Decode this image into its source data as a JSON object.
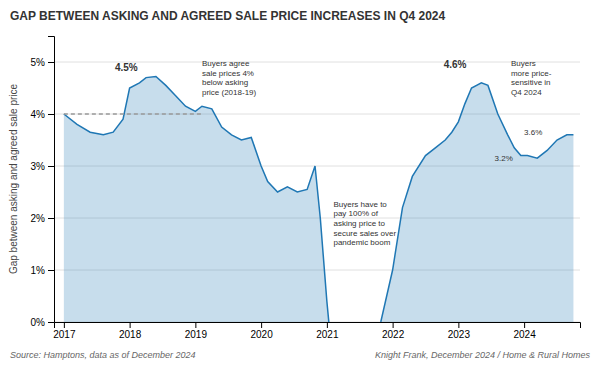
{
  "chart_data": {
    "type": "area",
    "title": "GAP BETWEEN ASKING AND AGREED SALE PRICE INCREASES IN Q4 2024",
    "ylabel": "Gap between asking and agreed sale price",
    "notes": [
      "Source: Hamptons, data as of December 2024",
      "Knight Frank, December 2024 / Home & Rural Homes"
    ],
    "series": [
      {
        "type": "area",
        "x": [
          2017.0,
          2017.2,
          2017.4,
          2017.6,
          2017.75,
          2017.9,
          2018.0,
          2018.15,
          2018.25,
          2018.4,
          2018.55,
          2018.7,
          2018.85,
          2019.0,
          2019.1,
          2019.25,
          2019.4,
          2019.55,
          2019.7,
          2019.85,
          2020.0,
          2020.1,
          2020.25,
          2020.4,
          2020.55,
          2020.7,
          2020.82,
          2020.9,
          2021.0,
          2021.03
        ],
        "values": [
          4.0,
          3.8,
          3.65,
          3.6,
          3.65,
          3.9,
          4.5,
          4.6,
          4.7,
          4.72,
          4.55,
          4.35,
          4.15,
          4.05,
          4.15,
          4.1,
          3.75,
          3.6,
          3.5,
          3.55,
          3.0,
          2.7,
          2.5,
          2.6,
          2.5,
          2.55,
          3.0,
          2.0,
          0.4,
          0.0
        ]
      },
      {
        "type": "area",
        "x": [
          2021.82,
          2022.0,
          2022.15,
          2022.3,
          2022.5,
          2022.65,
          2022.8,
          2022.9,
          2023.0,
          2023.1,
          2023.2,
          2023.35,
          2023.45,
          2023.6,
          2023.75,
          2023.85,
          2023.95,
          2024.05,
          2024.2,
          2024.35,
          2024.5,
          2024.65,
          2024.75
        ],
        "values": [
          0.0,
          1.0,
          2.2,
          2.8,
          3.2,
          3.35,
          3.5,
          3.65,
          3.85,
          4.2,
          4.5,
          4.6,
          4.55,
          4.0,
          3.6,
          3.35,
          3.2,
          3.2,
          3.15,
          3.3,
          3.5,
          3.6,
          3.6
        ]
      },
      {
        "type": "line",
        "line_style": "dashed",
        "color": "#999999",
        "x": [
          2017.0,
          2019.1
        ],
        "values": [
          4.0,
          4.0
        ]
      }
    ],
    "annotations": [
      {
        "text": "4.5%",
        "x": 2017.95,
        "y": 4.78
      },
      {
        "text": "Buyers agree\nsale prices 4%\nbelow asking\nprice (2018-19)",
        "x": 2019.1,
        "y": 5.05
      },
      {
        "text": "Buyers have to\npay 100% of\nasking price to\nsecure sales over\npandemic boom",
        "x": 2021.1,
        "y": 1.9
      },
      {
        "text": "4.6%",
        "x": 2022.95,
        "y": 4.85
      },
      {
        "text": "Buyers\nmore price-\nsensitive in\nQ4 2024",
        "x": 2023.8,
        "y": 5.05
      },
      {
        "text": "3.2%",
        "x": 2023.55,
        "y": 3.15
      },
      {
        "text": "3.6%",
        "x": 2024.0,
        "y": 3.65
      }
    ],
    "xlim": [
      2016.85,
      2024.85
    ],
    "xticks": [
      2017,
      2018,
      2019,
      2020,
      2021,
      2022,
      2023,
      2024
    ],
    "ylim": [
      0,
      5.5
    ],
    "yticks": [
      {
        "value": 0,
        "label": "0%"
      },
      {
        "value": 1,
        "label": "1%"
      },
      {
        "value": 2,
        "label": "2%"
      },
      {
        "value": 3,
        "label": "3%"
      },
      {
        "value": 4,
        "label": "4%"
      },
      {
        "value": 5,
        "label": "5%"
      }
    ],
    "grid": true
  }
}
